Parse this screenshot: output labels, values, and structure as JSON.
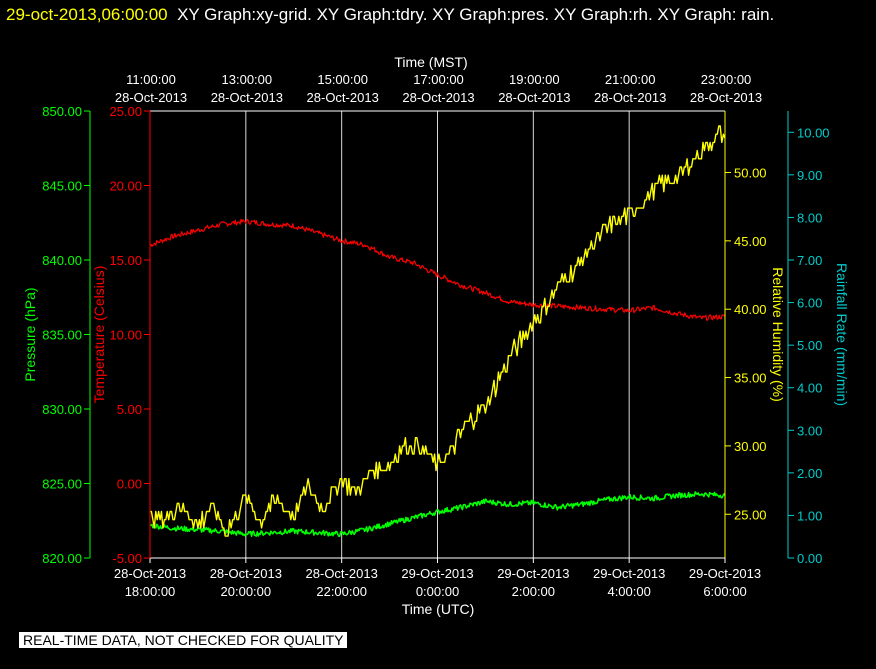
{
  "header": {
    "timestamp": "29-oct-2013,06:00:00",
    "titles": "XY Graph:xy-grid.  XY Graph:tdry.  XY Graph:pres.  XY Graph:rh.  XY Graph: rain."
  },
  "notice": "REAL-TIME DATA, NOT CHECKED FOR QUALITY",
  "colors": {
    "pressure": "#00ff00",
    "temperature": "#ff0000",
    "humidity": "#ffff00",
    "rain": "#00cccc",
    "grid": "#ffffff",
    "axis_text": "#ffffff"
  },
  "chart_data": {
    "type": "line",
    "x_top": {
      "label": "Time (MST)",
      "ticks": [
        {
          "time": "11:00:00",
          "date": "28-Oct-2013"
        },
        {
          "time": "13:00:00",
          "date": "28-Oct-2013"
        },
        {
          "time": "15:00:00",
          "date": "28-Oct-2013"
        },
        {
          "time": "17:00:00",
          "date": "28-Oct-2013"
        },
        {
          "time": "19:00:00",
          "date": "28-Oct-2013"
        },
        {
          "time": "21:00:00",
          "date": "28-Oct-2013"
        },
        {
          "time": "23:00:00",
          "date": "28-Oct-2013"
        }
      ]
    },
    "x_bottom": {
      "label": "Time (UTC)",
      "range_hours": [
        18,
        30
      ],
      "ticks": [
        {
          "date": "28-Oct-2013",
          "time": "18:00:00"
        },
        {
          "date": "28-Oct-2013",
          "time": "20:00:00"
        },
        {
          "date": "28-Oct-2013",
          "time": "22:00:00"
        },
        {
          "date": "29-Oct-2013",
          "time": "0:00:00"
        },
        {
          "date": "29-Oct-2013",
          "time": "2:00:00"
        },
        {
          "date": "29-Oct-2013",
          "time": "4:00:00"
        },
        {
          "date": "29-Oct-2013",
          "time": "6:00:00"
        }
      ]
    },
    "axes": {
      "pressure": {
        "label": "Pressure (hPa)",
        "range": [
          820,
          850
        ],
        "ticks": [
          "820.00",
          "825.00",
          "830.00",
          "835.00",
          "840.00",
          "845.00",
          "850.00"
        ]
      },
      "temperature": {
        "label": "Temperature (Celsius)",
        "range": [
          -5,
          25
        ],
        "ticks": [
          "-5.00",
          "0.00",
          "5.00",
          "10.00",
          "15.00",
          "20.00",
          "25.00"
        ]
      },
      "humidity": {
        "label": "Relative Humidity (%)",
        "range": [
          21.8,
          54.5
        ],
        "ticks": [
          "25.00",
          "30.00",
          "35.00",
          "40.00",
          "45.00",
          "50.00"
        ]
      },
      "rain": {
        "label": "Rainfall Rate (mm/min)",
        "range": [
          0,
          10.5
        ],
        "ticks": [
          "0.00",
          "1.00",
          "2.00",
          "3.00",
          "4.00",
          "5.00",
          "6.00",
          "7.00",
          "8.00",
          "9.00",
          "10.00"
        ]
      }
    },
    "grid": true,
    "series": [
      {
        "key": "temperature",
        "x": [
          18,
          18.5,
          19,
          19.5,
          20,
          20.5,
          21,
          21.5,
          22,
          22.5,
          23,
          23.5,
          24,
          24.5,
          25,
          25.5,
          26,
          26.5,
          27,
          27.5,
          28,
          28.5,
          29,
          29.5,
          30
        ],
        "values": [
          16.0,
          16.6,
          17.0,
          17.4,
          17.6,
          17.4,
          17.3,
          16.8,
          16.3,
          16.0,
          15.2,
          14.8,
          14.0,
          13.3,
          12.8,
          12.2,
          12.0,
          11.9,
          11.8,
          11.7,
          11.6,
          11.8,
          11.4,
          11.1,
          11.2
        ]
      },
      {
        "key": "pressure",
        "x": [
          18,
          18.5,
          19,
          19.5,
          20,
          20.5,
          21,
          21.5,
          22,
          22.5,
          23,
          23.5,
          24,
          24.5,
          25,
          25.5,
          26,
          26.5,
          27,
          27.5,
          28,
          28.5,
          29,
          29.5,
          30
        ],
        "values": [
          822.2,
          822.0,
          821.9,
          821.8,
          821.6,
          821.7,
          821.8,
          821.7,
          821.6,
          821.9,
          822.3,
          822.7,
          823.1,
          823.4,
          823.8,
          823.6,
          823.7,
          823.4,
          823.6,
          823.9,
          824.1,
          824.0,
          824.2,
          824.3,
          824.2
        ]
      },
      {
        "key": "humidity",
        "x": [
          18,
          18.3,
          18.6,
          19,
          19.3,
          19.6,
          20,
          20.3,
          20.6,
          21,
          21.3,
          21.6,
          22,
          22.3,
          22.6,
          23,
          23.3,
          23.6,
          24,
          24.3,
          24.6,
          25,
          25.3,
          25.6,
          26,
          26.3,
          26.6,
          27,
          27.3,
          27.6,
          28,
          28.3,
          28.6,
          29,
          29.3,
          29.6,
          29.9,
          30
        ],
        "values": [
          25.0,
          24.5,
          25.8,
          24.2,
          25.5,
          23.8,
          26.2,
          24.6,
          26.0,
          25.0,
          27.0,
          25.2,
          27.6,
          26.6,
          28.0,
          28.6,
          30.0,
          30.0,
          28.5,
          29.8,
          31.5,
          33.0,
          35.0,
          37.0,
          39.0,
          40.5,
          42.0,
          43.5,
          45.0,
          46.0,
          47.0,
          48.0,
          49.0,
          49.8,
          50.8,
          51.8,
          53.0,
          52.5
        ]
      }
    ]
  }
}
